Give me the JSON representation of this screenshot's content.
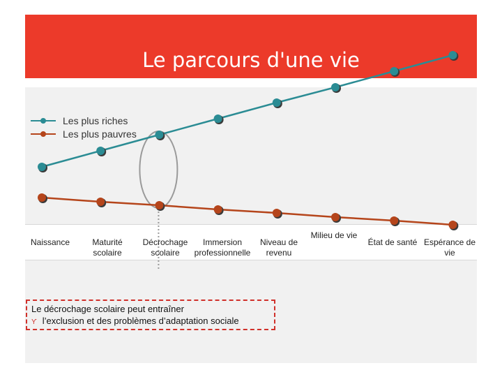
{
  "title": "Le parcours d'une vie",
  "legend": [
    {
      "label": "Les plus riches",
      "color": "#2b8c94"
    },
    {
      "label": "Les plus pauvres",
      "color": "#b5451b"
    }
  ],
  "stages": [
    [
      "Naissance"
    ],
    [
      "Maturité",
      "scolaire"
    ],
    [
      "Décrochage",
      "scolaire"
    ],
    [
      "Immersion",
      "professionnelle"
    ],
    [
      "Niveau de",
      "revenu"
    ],
    [
      "Milieu de vie"
    ],
    [
      "État de santé"
    ],
    [
      "Espérance de",
      "vie"
    ]
  ],
  "note": {
    "line1": "Le décrochage scolaire peut entraîner",
    "bullet": "ϒ",
    "line2": "l’exclusion et des problèmes d’adaptation sociale"
  },
  "chart_data": {
    "type": "line",
    "title": "Le parcours d'une vie",
    "categories": [
      "Naissance",
      "Maturité scolaire",
      "Décrochage scolaire",
      "Immersion professionnelle",
      "Niveau de revenu",
      "Milieu de vie",
      "État de santé",
      "Espérance de vie"
    ],
    "series": [
      {
        "name": "Les plus riches",
        "color": "#2b8c94",
        "values": [
          88,
          111,
          134,
          157,
          180,
          202,
          225,
          248
        ]
      },
      {
        "name": "Les plus pauvres",
        "color": "#b5451b",
        "values": [
          44,
          38,
          33,
          27,
          22,
          16,
          11,
          5
        ]
      }
    ],
    "ylim": [
      0,
      280
    ],
    "xlabel": "",
    "ylabel": "",
    "grid": false,
    "legend": "top-left",
    "highlight_category": "Décrochage scolaire"
  }
}
